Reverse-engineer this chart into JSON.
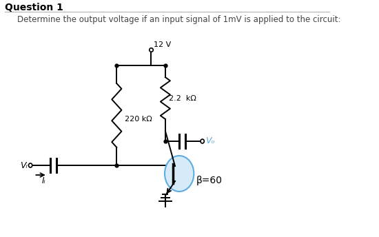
{
  "title": "Question 1",
  "subtitle": "Determine the output voltage if an input signal of 1mV is applied to the circuit:",
  "vcc_label": "12 V",
  "r1_label": "220 kΩ",
  "r2_label": "2.2  kΩ",
  "beta_label": "β=60",
  "vi_label": "Vᵢ",
  "ii_label": "Iᵢ",
  "vo_label": "Vₒ",
  "bg_color": "#ffffff",
  "circuit_color": "#000000",
  "transistor_fill": "#d6eaf8",
  "transistor_stroke": "#5dade2",
  "vo_color": "#5dade2",
  "title_color": "#000000",
  "subtitle_color": "#444444"
}
